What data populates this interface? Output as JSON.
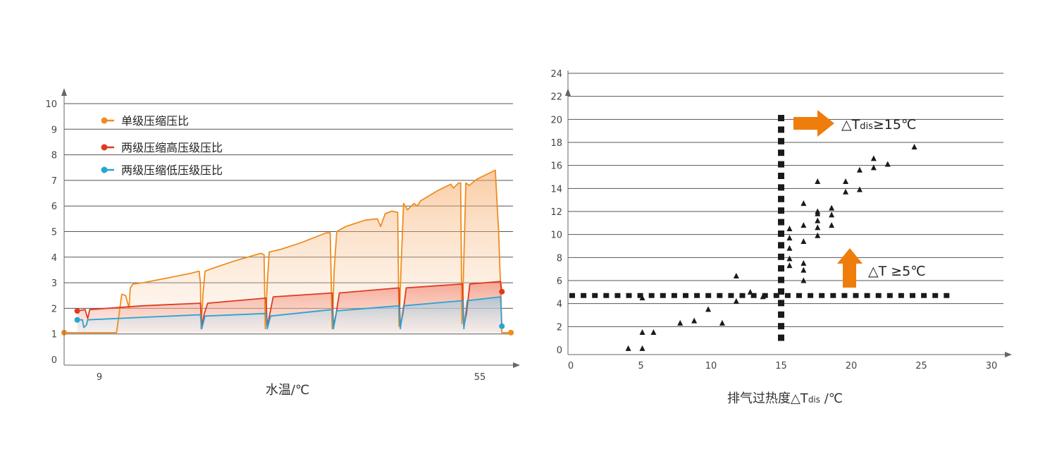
{
  "colors": {
    "single": "#f08c1e",
    "high": "#e03a24",
    "low": "#2aa3d6",
    "grid": "#555555",
    "axis": "#666666",
    "marker": "#1a1a1a",
    "arrow": "#ee7d0b"
  },
  "chart_data": [
    {
      "type": "line",
      "xlabel": "水温/℃",
      "ylabel": "",
      "ylim": [
        0,
        10
      ],
      "yticks": [
        "0",
        "1",
        "2",
        "3",
        "4",
        "5",
        "6",
        "7",
        "8",
        "9",
        "10"
      ],
      "xticks": [
        {
          "value": 9,
          "label": "9"
        },
        {
          "value": 55,
          "label": "55"
        }
      ],
      "legend_position": "top-left",
      "legend": [
        {
          "key": "single",
          "label": "单级压缩压比",
          "color": "#f08c1e"
        },
        {
          "key": "high",
          "label": "两级压缩高压级压比",
          "color": "#e03a24"
        },
        {
          "key": "low",
          "label": "两级压缩低压级压比",
          "color": "#2aa3d6"
        }
      ],
      "series": [
        {
          "name": "单级压缩压比",
          "key": "single",
          "points": [
            [
              0,
              1.05
            ],
            [
              8,
              1.05
            ],
            [
              8.4,
              1.8
            ],
            [
              8.8,
              2.55
            ],
            [
              9.4,
              2.5
            ],
            [
              9.9,
              2.0
            ],
            [
              10.1,
              2.8
            ],
            [
              10.5,
              2.95
            ],
            [
              12,
              3.0
            ],
            [
              15,
              3.15
            ],
            [
              19,
              3.35
            ],
            [
              20.6,
              3.45
            ],
            [
              20.8,
              3.0
            ],
            [
              20.9,
              1.2
            ],
            [
              21.2,
              2.6
            ],
            [
              21.5,
              3.45
            ],
            [
              22.5,
              3.55
            ],
            [
              26,
              3.85
            ],
            [
              30,
              4.15
            ],
            [
              30.5,
              4.1
            ],
            [
              30.7,
              1.2
            ],
            [
              31,
              3.0
            ],
            [
              31.3,
              4.2
            ],
            [
              33,
              4.3
            ],
            [
              36,
              4.55
            ],
            [
              40,
              4.95
            ],
            [
              40.6,
              4.95
            ],
            [
              40.9,
              1.2
            ],
            [
              41.2,
              3.5
            ],
            [
              41.6,
              5.0
            ],
            [
              43,
              5.2
            ],
            [
              46,
              5.45
            ],
            [
              47.8,
              5.5
            ],
            [
              48.3,
              5.2
            ],
            [
              49,
              5.7
            ],
            [
              50,
              5.8
            ],
            [
              50.9,
              5.75
            ],
            [
              51.1,
              1.3
            ],
            [
              51.4,
              3.5
            ],
            [
              51.8,
              6.1
            ],
            [
              52.4,
              5.85
            ],
            [
              53.4,
              6.1
            ],
            [
              53.9,
              6.0
            ],
            [
              54.4,
              6.2
            ],
            [
              57,
              6.6
            ],
            [
              59,
              6.85
            ],
            [
              59.4,
              6.7
            ],
            [
              60.2,
              6.9
            ],
            [
              60.5,
              6.9
            ],
            [
              60.7,
              1.4
            ],
            [
              60.9,
              3.0
            ],
            [
              61.3,
              6.9
            ],
            [
              61.8,
              6.8
            ],
            [
              63,
              7.05
            ],
            [
              65,
              7.3
            ],
            [
              65.8,
              7.4
            ],
            [
              66.3,
              5.0
            ],
            [
              66.6,
              2.8
            ],
            [
              66.8,
              1.05
            ],
            [
              68.4,
              1.05
            ]
          ]
        },
        {
          "name": "两级压缩高压级压比",
          "key": "high",
          "points": [
            [
              2,
              1.9
            ],
            [
              3.2,
              1.95
            ],
            [
              3.6,
              1.6
            ],
            [
              3.9,
              1.95
            ],
            [
              12,
              2.1
            ],
            [
              20.8,
              2.2
            ],
            [
              21.0,
              1.3
            ],
            [
              21.4,
              1.8
            ],
            [
              21.9,
              2.2
            ],
            [
              30.8,
              2.4
            ],
            [
              31.0,
              1.3
            ],
            [
              31.4,
              1.8
            ],
            [
              31.9,
              2.45
            ],
            [
              40.9,
              2.6
            ],
            [
              41.1,
              1.3
            ],
            [
              41.5,
              1.8
            ],
            [
              42,
              2.6
            ],
            [
              51.1,
              2.8
            ],
            [
              51.3,
              1.3
            ],
            [
              51.7,
              1.8
            ],
            [
              52.2,
              2.8
            ],
            [
              60.8,
              2.95
            ],
            [
              61.0,
              1.3
            ],
            [
              61.4,
              1.8
            ],
            [
              61.9,
              2.95
            ],
            [
              66.6,
              3.05
            ],
            [
              66.8,
              2.65
            ]
          ]
        },
        {
          "name": "两级压缩低压级压比",
          "key": "low",
          "points": [
            [
              2,
              1.55
            ],
            [
              2.8,
              1.55
            ],
            [
              3.0,
              1.25
            ],
            [
              3.4,
              1.35
            ],
            [
              3.6,
              1.55
            ],
            [
              12,
              1.65
            ],
            [
              20.8,
              1.75
            ],
            [
              21.0,
              1.2
            ],
            [
              21.5,
              1.7
            ],
            [
              30.8,
              1.8
            ],
            [
              31.0,
              1.2
            ],
            [
              31.5,
              1.7
            ],
            [
              40.9,
              1.95
            ],
            [
              41.1,
              1.2
            ],
            [
              41.6,
              1.9
            ],
            [
              51.1,
              2.1
            ],
            [
              51.3,
              1.2
            ],
            [
              51.8,
              2.1
            ],
            [
              60.8,
              2.3
            ],
            [
              61.0,
              1.2
            ],
            [
              61.5,
              2.3
            ],
            [
              66.6,
              2.45
            ],
            [
              66.8,
              1.3
            ]
          ]
        }
      ]
    },
    {
      "type": "scatter",
      "xlabel": "排气过热度△T",
      "xlabel_sub": "dis",
      "xlabel_unit": " /℃",
      "ylabel": "",
      "xlim": [
        0,
        30
      ],
      "ylim": [
        0,
        24
      ],
      "xticks": [
        "0",
        "5",
        "10",
        "15",
        "20",
        "25",
        "30"
      ],
      "yticks": [
        "0",
        "2",
        "4",
        "6",
        "8",
        "10",
        "12",
        "14",
        "16",
        "18",
        "20",
        "22",
        "24"
      ],
      "threshold_x": 15,
      "threshold_y": 5,
      "annotation_top": {
        "main": "△T",
        "sub": "dis",
        "rest": "≥15℃"
      },
      "annotation_right": {
        "text": "△T  ≥5℃"
      },
      "points": [
        [
          4.1,
          0.1
        ],
        [
          5.1,
          0.1
        ],
        [
          5.1,
          1.5
        ],
        [
          5.9,
          1.5
        ],
        [
          5.1,
          4.5
        ],
        [
          7.8,
          2.3
        ],
        [
          8.8,
          2.5
        ],
        [
          9.8,
          3.5
        ],
        [
          10.8,
          2.3
        ],
        [
          11.8,
          4.2
        ],
        [
          11.8,
          6.4
        ],
        [
          12.8,
          5.0
        ],
        [
          13.7,
          4.6
        ],
        [
          15.6,
          10.5
        ],
        [
          15.6,
          9.7
        ],
        [
          15.6,
          8.8
        ],
        [
          15.6,
          7.9
        ],
        [
          15.6,
          7.3
        ],
        [
          16.6,
          12.7
        ],
        [
          16.6,
          10.8
        ],
        [
          16.6,
          9.4
        ],
        [
          16.6,
          7.5
        ],
        [
          16.6,
          6.9
        ],
        [
          16.6,
          6.0
        ],
        [
          17.6,
          14.6
        ],
        [
          17.6,
          12.0
        ],
        [
          17.6,
          11.8
        ],
        [
          17.6,
          11.2
        ],
        [
          17.6,
          10.6
        ],
        [
          17.6,
          9.9
        ],
        [
          18.6,
          12.3
        ],
        [
          18.6,
          11.7
        ],
        [
          18.6,
          10.8
        ],
        [
          19.6,
          14.6
        ],
        [
          19.6,
          13.7
        ],
        [
          20.6,
          13.9
        ],
        [
          20.6,
          15.6
        ],
        [
          21.6,
          16.6
        ],
        [
          21.6,
          15.8
        ],
        [
          22.6,
          16.1
        ],
        [
          24.5,
          17.6
        ]
      ]
    }
  ]
}
